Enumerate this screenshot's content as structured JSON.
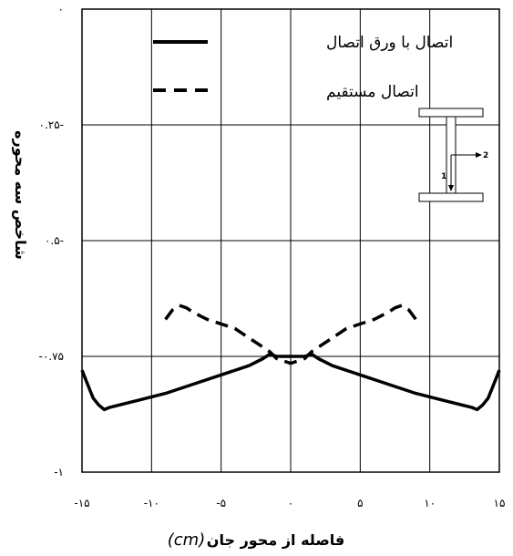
{
  "chart_data": {
    "type": "line",
    "title": "",
    "xlabel": "فاصله از محور جان",
    "xlabel_unit": "(cm)",
    "ylabel": "شاخص سه محوره",
    "xlim": [
      -15,
      15
    ],
    "ylim": [
      -1,
      0
    ],
    "grid": true,
    "legend_position": "top-center",
    "x_ticks": [
      {
        "value": -15,
        "label": "-۱۵"
      },
      {
        "value": -10,
        "label": "-۱۰"
      },
      {
        "value": -5,
        "label": "-۵"
      },
      {
        "value": 0,
        "label": "۰"
      },
      {
        "value": 5,
        "label": "۵"
      },
      {
        "value": 10,
        "label": "۱۰"
      },
      {
        "value": 15,
        "label": "۱۵"
      }
    ],
    "y_ticks": [
      {
        "value": 0,
        "label": "۰"
      },
      {
        "value": -0.25,
        "label": "۰.۲۵-"
      },
      {
        "value": -0.5,
        "label": "۰.۵-"
      },
      {
        "value": -0.75,
        "label": "-۰.۷۵"
      },
      {
        "value": -1,
        "label": "-۱"
      }
    ],
    "series": [
      {
        "name": "اتصال با ورق اتصال",
        "style": "solid",
        "color": "#000000",
        "x": [
          -15,
          -14.6,
          -14.2,
          -13.8,
          -13.4,
          -13.0,
          -11,
          -9,
          -7,
          -5,
          -3,
          -2,
          -1.5,
          -1.0,
          -0.5,
          0,
          0.5,
          1.0,
          1.5,
          2,
          3,
          5,
          7,
          9,
          11,
          13.0,
          13.4,
          13.8,
          14.2,
          14.6,
          15
        ],
        "y": [
          -0.78,
          -0.81,
          -0.84,
          -0.855,
          -0.865,
          -0.86,
          -0.845,
          -0.83,
          -0.81,
          -0.79,
          -0.77,
          -0.755,
          -0.745,
          -0.75,
          -0.75,
          -0.75,
          -0.75,
          -0.75,
          -0.745,
          -0.755,
          -0.77,
          -0.79,
          -0.81,
          -0.83,
          -0.845,
          -0.86,
          -0.865,
          -0.855,
          -0.84,
          -0.81,
          -0.78
        ]
      },
      {
        "name": "اتصال مستقیم",
        "style": "dashed",
        "color": "#000000",
        "x": [
          -9,
          -8.5,
          -8,
          -7.5,
          -7,
          -6,
          -5,
          -4,
          -3,
          -2,
          -1.5,
          -1,
          -0.5,
          0,
          0.5,
          1,
          1.5,
          2,
          3,
          4,
          5,
          6,
          7,
          7.5,
          8,
          8.5,
          9
        ],
        "y": [
          -0.67,
          -0.65,
          -0.64,
          -0.645,
          -0.655,
          -0.67,
          -0.68,
          -0.69,
          -0.71,
          -0.73,
          -0.74,
          -0.755,
          -0.76,
          -0.765,
          -0.76,
          -0.755,
          -0.74,
          -0.73,
          -0.71,
          -0.69,
          -0.68,
          -0.67,
          -0.655,
          -0.645,
          -0.64,
          -0.65,
          -0.67
        ]
      }
    ],
    "inset": {
      "labels": [
        "1",
        "2"
      ]
    }
  }
}
